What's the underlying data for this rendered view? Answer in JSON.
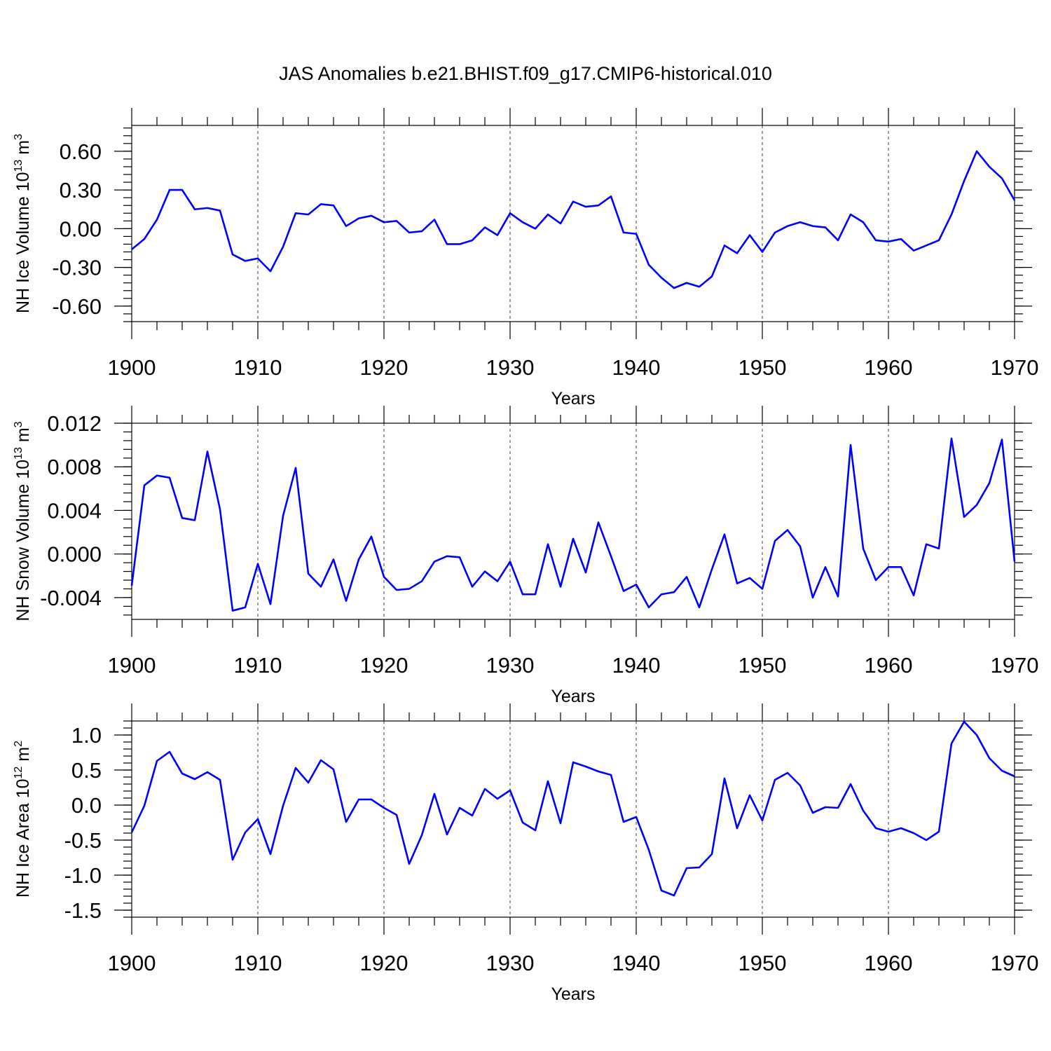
{
  "title": "JAS Anomalies b.e21.BHIST.f09_g17.CMIP6-historical.010",
  "colors": {
    "line": "#0000ff",
    "axis": "#000000"
  },
  "chart_data": [
    {
      "type": "line",
      "name": "ice-volume",
      "ylabel_main": "NH Ice Volume 10",
      "ylabel_exp": "13",
      "ylabel_unit": " m",
      "ylabel_unit_exp": "3",
      "xlabel": "Years",
      "xlim": [
        1900,
        1970
      ],
      "ylim": [
        -0.72,
        0.8
      ],
      "x_ticks": [
        1900,
        1910,
        1920,
        1930,
        1940,
        1950,
        1960,
        1970
      ],
      "x_tick_labels": [
        "1900",
        "1910",
        "1920",
        "1930",
        "1940",
        "1950",
        "1960",
        "1970"
      ],
      "y_ticks": [
        0.6,
        0.3,
        0.0,
        -0.3,
        -0.6
      ],
      "y_tick_labels": [
        "0.60",
        "0.30",
        "0.00",
        "-0.30",
        "-0.60"
      ],
      "y_minor_step": 0.06,
      "grid_x": [
        1910,
        1920,
        1930,
        1940,
        1950,
        1960
      ],
      "x_start": 1900,
      "values": [
        -0.16,
        -0.08,
        0.07,
        0.3,
        0.3,
        0.15,
        0.16,
        0.14,
        -0.2,
        -0.25,
        -0.23,
        -0.33,
        -0.14,
        0.12,
        0.11,
        0.19,
        0.18,
        0.02,
        0.08,
        0.1,
        0.05,
        0.06,
        -0.03,
        -0.02,
        0.07,
        -0.12,
        -0.12,
        -0.09,
        0.01,
        -0.05,
        0.12,
        0.05,
        0.0,
        0.11,
        0.04,
        0.21,
        0.17,
        0.18,
        0.25,
        -0.03,
        -0.04,
        -0.28,
        -0.38,
        -0.46,
        -0.42,
        -0.45,
        -0.37,
        -0.13,
        -0.19,
        -0.05,
        -0.18,
        -0.03,
        0.02,
        0.05,
        0.02,
        0.01,
        -0.09,
        0.11,
        0.05,
        -0.09,
        -0.1,
        -0.08,
        -0.17,
        -0.13,
        -0.09,
        0.11,
        0.37,
        0.6,
        0.48,
        0.39,
        0.22
      ]
    },
    {
      "type": "line",
      "name": "snow-volume",
      "ylabel_main": "NH Snow Volume 10",
      "ylabel_exp": "13",
      "ylabel_unit": " m",
      "ylabel_unit_exp": "3",
      "xlabel": "Years",
      "xlim": [
        1900,
        1970
      ],
      "ylim": [
        -0.006,
        0.012
      ],
      "x_ticks": [
        1900,
        1910,
        1920,
        1930,
        1940,
        1950,
        1960,
        1970
      ],
      "x_tick_labels": [
        "1900",
        "1910",
        "1920",
        "1930",
        "1940",
        "1950",
        "1960",
        "1970"
      ],
      "y_ticks": [
        0.012,
        0.008,
        0.004,
        0.0,
        -0.004
      ],
      "y_tick_labels": [
        "0.012",
        "0.008",
        "0.004",
        "0.000",
        "-0.004"
      ],
      "y_minor_step": 0.0008,
      "grid_x": [
        1910,
        1920,
        1930,
        1940,
        1950,
        1960
      ],
      "x_start": 1900,
      "values": [
        -0.0029,
        0.0063,
        0.0072,
        0.007,
        0.0033,
        0.0031,
        0.0094,
        0.0041,
        -0.0052,
        -0.0049,
        -0.0009,
        -0.0046,
        0.0035,
        0.0079,
        -0.0018,
        -0.003,
        -0.0005,
        -0.0043,
        -0.0005,
        0.0016,
        -0.0021,
        -0.0033,
        -0.0032,
        -0.0025,
        -0.0007,
        -0.0002,
        -0.0003,
        -0.003,
        -0.0016,
        -0.0025,
        -0.0007,
        -0.0037,
        -0.0037,
        0.0009,
        -0.003,
        0.0014,
        -0.0017,
        0.0029,
        -0.0002,
        -0.0034,
        -0.0028,
        -0.0049,
        -0.0037,
        -0.0035,
        -0.0021,
        -0.0049,
        -0.0014,
        0.0018,
        -0.0027,
        -0.0022,
        -0.0032,
        0.0012,
        0.0022,
        0.0007,
        -0.004,
        -0.0012,
        -0.0039,
        0.01,
        0.0005,
        -0.0024,
        -0.0012,
        -0.0012,
        -0.0038,
        0.0009,
        0.0005,
        0.0106,
        0.0034,
        0.0045,
        0.0065,
        0.0105,
        -0.0007
      ]
    },
    {
      "type": "line",
      "name": "ice-area",
      "ylabel_main": "NH Ice Area 10",
      "ylabel_exp": "12",
      "ylabel_unit": " m",
      "ylabel_unit_exp": "2",
      "xlabel": "Years",
      "xlim": [
        1900,
        1970
      ],
      "ylim": [
        -1.6,
        1.2
      ],
      "x_ticks": [
        1900,
        1910,
        1920,
        1930,
        1940,
        1950,
        1960,
        1970
      ],
      "x_tick_labels": [
        "1900",
        "1910",
        "1920",
        "1930",
        "1940",
        "1950",
        "1960",
        "1970"
      ],
      "y_ticks": [
        1.0,
        0.5,
        0.0,
        -0.5,
        -1.0,
        -1.5
      ],
      "y_tick_labels": [
        "1.0",
        "0.5",
        "0.0",
        "-0.5",
        "-1.0",
        "-1.5"
      ],
      "y_minor_step": 0.1,
      "grid_x": [
        1910,
        1920,
        1930,
        1940,
        1950,
        1960
      ],
      "x_start": 1900,
      "values": [
        -0.39,
        -0.01,
        0.63,
        0.76,
        0.45,
        0.37,
        0.47,
        0.36,
        -0.78,
        -0.39,
        -0.2,
        -0.7,
        -0.01,
        0.53,
        0.32,
        0.64,
        0.51,
        -0.24,
        0.08,
        0.08,
        -0.04,
        -0.14,
        -0.84,
        -0.43,
        0.16,
        -0.42,
        -0.04,
        -0.15,
        0.23,
        0.09,
        0.21,
        -0.25,
        -0.36,
        0.34,
        -0.26,
        0.61,
        0.55,
        0.48,
        0.43,
        -0.24,
        -0.17,
        -0.64,
        -1.22,
        -1.29,
        -0.9,
        -0.89,
        -0.7,
        0.38,
        -0.33,
        0.14,
        -0.22,
        0.36,
        0.46,
        0.28,
        -0.11,
        -0.03,
        -0.04,
        0.3,
        -0.08,
        -0.33,
        -0.38,
        -0.33,
        -0.4,
        -0.5,
        -0.38,
        0.88,
        1.19,
        1.0,
        0.67,
        0.49,
        0.41
      ]
    }
  ]
}
